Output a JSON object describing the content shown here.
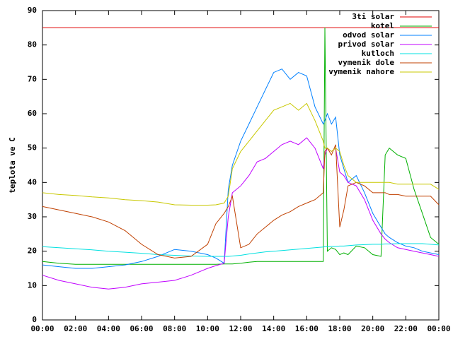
{
  "chart_data": {
    "type": "line",
    "ylabel": "teplota ve C",
    "x": [
      0,
      1,
      2,
      3,
      4,
      5,
      6,
      7,
      8,
      9,
      10,
      10.5,
      11,
      11.25,
      11.5,
      12,
      12.5,
      13,
      13.5,
      14,
      14.5,
      15,
      15.5,
      16,
      16.5,
      17,
      17.1,
      17.25,
      17.5,
      17.75,
      18,
      18.25,
      18.5,
      19,
      19.5,
      20,
      20.5,
      20.75,
      21,
      21.5,
      22,
      22.5,
      23,
      23.5,
      24
    ],
    "series": [
      {
        "name": "3ti solar",
        "color": "#e00000",
        "values": [
          85,
          85,
          85,
          85,
          85,
          85,
          85,
          85,
          85,
          85,
          85,
          85,
          85,
          85,
          85,
          85,
          85,
          85,
          85,
          85,
          85,
          85,
          85,
          85,
          85,
          85,
          85,
          85,
          85,
          85,
          85,
          85,
          85,
          85,
          85,
          85,
          85,
          85,
          85,
          85,
          85,
          85,
          85,
          85,
          85
        ]
      },
      {
        "name": "kotel",
        "color": "#00b000",
        "values": [
          17,
          16.5,
          16.2,
          16.2,
          16.2,
          16.2,
          16.2,
          16.2,
          16.2,
          16.2,
          16.2,
          16.2,
          16.3,
          16.3,
          16.3,
          16.5,
          16.8,
          17,
          17,
          17,
          17,
          17,
          17,
          17,
          17,
          17,
          85,
          20,
          21,
          20.5,
          19,
          19.5,
          19,
          21.5,
          21,
          19,
          18.5,
          48,
          50,
          48,
          47,
          38,
          31,
          24,
          22
        ]
      },
      {
        "name": "odvod solar",
        "color": "#0080ff",
        "values": [
          16,
          15.5,
          15,
          15,
          15.5,
          16,
          17,
          18.5,
          20.5,
          20,
          19,
          18,
          16.5,
          38,
          45,
          52,
          57,
          62,
          67,
          72,
          73,
          70,
          72,
          71,
          62,
          57,
          58,
          60,
          57,
          59,
          48,
          44,
          40,
          42,
          37,
          31,
          27,
          25,
          24,
          22.5,
          21.5,
          21,
          20,
          19.5,
          19
        ]
      },
      {
        "name": "privod solar",
        "color": "#c000ff",
        "values": [
          13,
          11.5,
          10.5,
          9.5,
          9,
          9.5,
          10.5,
          11,
          11.5,
          13,
          15,
          15.8,
          16.5,
          30,
          37,
          39,
          42,
          46,
          47,
          49,
          51,
          52,
          51,
          53,
          50,
          44,
          48,
          50,
          49,
          50,
          43,
          42,
          40,
          39,
          35,
          29,
          25,
          23.5,
          22.5,
          21,
          20.5,
          20,
          19.5,
          19,
          18.5
        ]
      },
      {
        "name": "kutloch",
        "color": "#00e0e0",
        "values": [
          21.3,
          21,
          20.7,
          20.4,
          20,
          19.7,
          19.4,
          19,
          18.8,
          18.6,
          18.5,
          18.5,
          18.5,
          18.5,
          18.6,
          18.8,
          19.2,
          19.5,
          19.8,
          20,
          20.2,
          20.4,
          20.6,
          20.8,
          21,
          21.2,
          21.3,
          21.3,
          21.4,
          21.4,
          21.5,
          21.5,
          21.6,
          21.8,
          21.9,
          22,
          22,
          22.1,
          22.1,
          22.2,
          22.2,
          22.2,
          22.2,
          22,
          21.8
        ]
      },
      {
        "name": "vymenik dole",
        "color": "#c04000",
        "values": [
          33,
          32,
          31,
          30,
          28.5,
          26,
          22,
          19,
          18,
          18.5,
          22,
          28,
          31,
          33,
          36,
          21,
          22,
          25,
          27,
          29,
          30.5,
          31.5,
          33,
          34,
          35,
          37,
          49,
          50,
          48,
          51,
          27,
          32,
          39,
          40,
          39,
          37,
          37,
          37,
          36.5,
          36.5,
          36,
          36,
          36,
          36,
          33.5
        ]
      },
      {
        "name": "vymenik nahore",
        "color": "#c8c800",
        "values": [
          37,
          36.5,
          36.2,
          35.8,
          35.5,
          35,
          34.7,
          34.3,
          33.5,
          33.4,
          33.4,
          33.5,
          34,
          36,
          44,
          49,
          52,
          55,
          58,
          61,
          62,
          63,
          61,
          63,
          58,
          52,
          50,
          50,
          49,
          50,
          49,
          45,
          42,
          40,
          40,
          40,
          40,
          40,
          40,
          39.5,
          39.5,
          39.5,
          39.5,
          39.5,
          38
        ]
      }
    ],
    "xlim": [
      0,
      24
    ],
    "xticks": [
      {
        "value": 0,
        "label": "00:00"
      },
      {
        "value": 2,
        "label": "02:00"
      },
      {
        "value": 4,
        "label": "04:00"
      },
      {
        "value": 6,
        "label": "06:00"
      },
      {
        "value": 8,
        "label": "08:00"
      },
      {
        "value": 10,
        "label": "10:00"
      },
      {
        "value": 12,
        "label": "12:00"
      },
      {
        "value": 14,
        "label": "14:00"
      },
      {
        "value": 16,
        "label": "16:00"
      },
      {
        "value": 18,
        "label": "18:00"
      },
      {
        "value": 20,
        "label": "20:00"
      },
      {
        "value": 22,
        "label": "22:00"
      },
      {
        "value": 24,
        "label": "00:00"
      }
    ],
    "ylim": [
      0,
      90
    ],
    "yticks": [
      0,
      10,
      20,
      30,
      40,
      50,
      60,
      70,
      80,
      90
    ],
    "grid": false,
    "legend": "top-right"
  }
}
